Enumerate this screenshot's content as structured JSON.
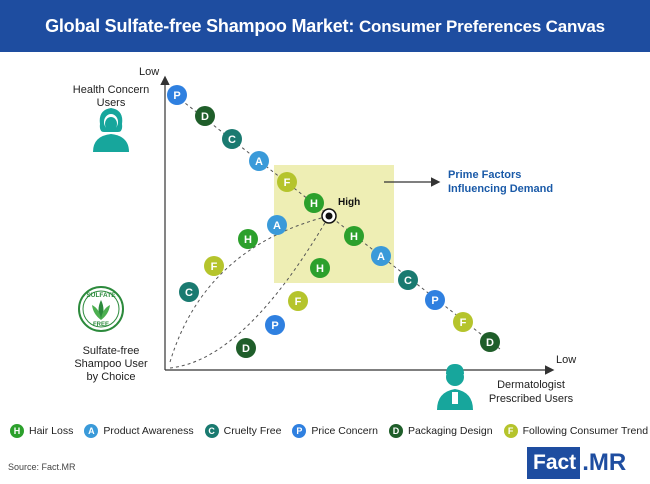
{
  "header": {
    "title_main": "Global Sulfate-free Shampoo Market:",
    "title_sub": "Consumer Preferences Canvas"
  },
  "labels": {
    "y_top": "Low",
    "x_right": "Low",
    "high": "High",
    "health_line1": "Health Concern",
    "health_line2": "Users",
    "sulfate_line1": "Sulfate-free",
    "sulfate_line2": "Shampoo User",
    "sulfate_line3": "by Choice",
    "derm_line1": "Dermatologist",
    "derm_line2": "Prescribed Users",
    "prime_line1": "Prime Factors",
    "prime_line2": "Influencing Demand",
    "badge_top": "SULFATE",
    "badge_bottom": "FREE"
  },
  "colors": {
    "H": "#2ca02c",
    "A": "#3a9ad9",
    "C": "#1a7a70",
    "P": "#2f80e0",
    "D": "#1f5e2a",
    "F": "#b5c42c",
    "highlight": "#eeeeb4",
    "brand": "#1e4da0",
    "title_accent": "#1a5aa8"
  },
  "legend": [
    {
      "letter": "H",
      "label": "Hair Loss"
    },
    {
      "letter": "A",
      "label": "Product Awareness"
    },
    {
      "letter": "C",
      "label": "Cruelty Free"
    },
    {
      "letter": "P",
      "label": "Price Concern"
    },
    {
      "letter": "D",
      "label": "Packaging Design"
    },
    {
      "letter": "F",
      "label": "Following Consumer Trend"
    }
  ],
  "diagonal_markers": [
    "P",
    "D",
    "C",
    "A",
    "F",
    "H",
    "H",
    "A",
    "C",
    "P",
    "F",
    "D"
  ],
  "lower_markers": [
    "D",
    "P",
    "F",
    "H"
  ],
  "upper_markers": [
    "C",
    "F",
    "H",
    "A"
  ],
  "source": "Source: Fact.MR",
  "logo": {
    "fact": "Fact",
    "mr": ".MR"
  }
}
